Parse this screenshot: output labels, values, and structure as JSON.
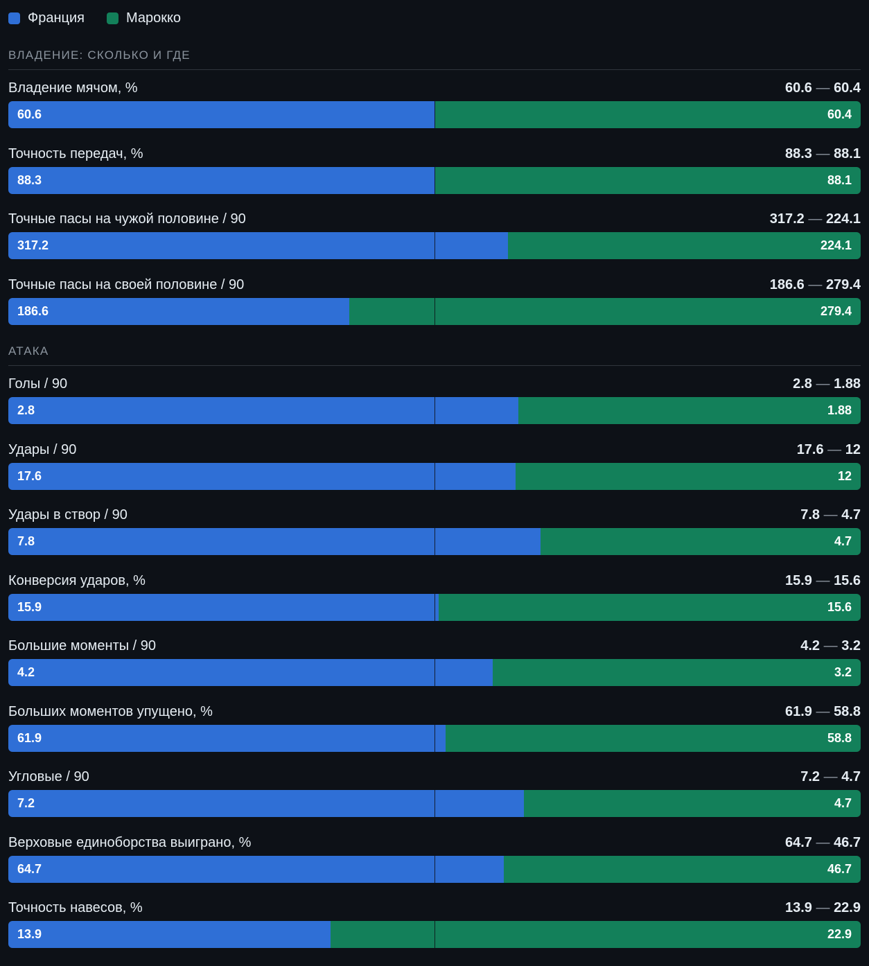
{
  "legend": [
    {
      "label": "Франция",
      "color": "#2f6fd6"
    },
    {
      "label": "Марокко",
      "color": "#13805a"
    }
  ],
  "chart_data": {
    "type": "bar",
    "orientation": "horizontal-stacked-share",
    "series": [
      {
        "name": "Франция",
        "color": "#2f6fd6"
      },
      {
        "name": "Марокко",
        "color": "#13805a"
      }
    ],
    "sections": [
      {
        "title": "ВЛАДЕНИЕ: СКОЛЬКО И ГДЕ",
        "metrics": [
          {
            "label": "Владение мячом, %",
            "france": 60.6,
            "morocco": 60.4,
            "france_text": "60.6",
            "morocco_text": "60.4",
            "share": 0.501
          },
          {
            "label": "Точность передач, %",
            "france": 88.3,
            "morocco": 88.1,
            "france_text": "88.3",
            "morocco_text": "88.1",
            "share": 0.501
          },
          {
            "label": "Точные пасы на чужой половине / 90",
            "france": 317.2,
            "morocco": 224.1,
            "france_text": "317.2",
            "morocco_text": "224.1",
            "share": 0.586
          },
          {
            "label": "Точные пасы на своей половине / 90",
            "france": 186.6,
            "morocco": 279.4,
            "france_text": "186.6",
            "morocco_text": "279.4",
            "share": 0.4
          }
        ]
      },
      {
        "title": "АТАКА",
        "metrics": [
          {
            "label": "Голы / 90",
            "france": 2.8,
            "morocco": 1.88,
            "france_text": "2.8",
            "morocco_text": "1.88",
            "share": 0.598
          },
          {
            "label": "Удары / 90",
            "france": 17.6,
            "morocco": 12,
            "france_text": "17.6",
            "morocco_text": "12",
            "share": 0.595
          },
          {
            "label": "Удары в створ / 90",
            "france": 7.8,
            "morocco": 4.7,
            "france_text": "7.8",
            "morocco_text": "4.7",
            "share": 0.624
          },
          {
            "label": "Конверсия ударов, %",
            "france": 15.9,
            "morocco": 15.6,
            "france_text": "15.9",
            "morocco_text": "15.6",
            "share": 0.505
          },
          {
            "label": "Большие моменты / 90",
            "france": 4.2,
            "morocco": 3.2,
            "france_text": "4.2",
            "morocco_text": "3.2",
            "share": 0.568
          },
          {
            "label": "Больших моментов упущено, %",
            "france": 61.9,
            "morocco": 58.8,
            "france_text": "61.9",
            "morocco_text": "58.8",
            "share": 0.513
          },
          {
            "label": "Угловые / 90",
            "france": 7.2,
            "morocco": 4.7,
            "france_text": "7.2",
            "morocco_text": "4.7",
            "share": 0.605
          },
          {
            "label": "Верховые единоборства выиграно, %",
            "france": 64.7,
            "morocco": 46.7,
            "france_text": "64.7",
            "morocco_text": "46.7",
            "share": 0.581
          },
          {
            "label": "Точность навесов, %",
            "france": 13.9,
            "morocco": 22.9,
            "france_text": "13.9",
            "morocco_text": "22.9",
            "share": 0.378
          }
        ]
      }
    ]
  }
}
